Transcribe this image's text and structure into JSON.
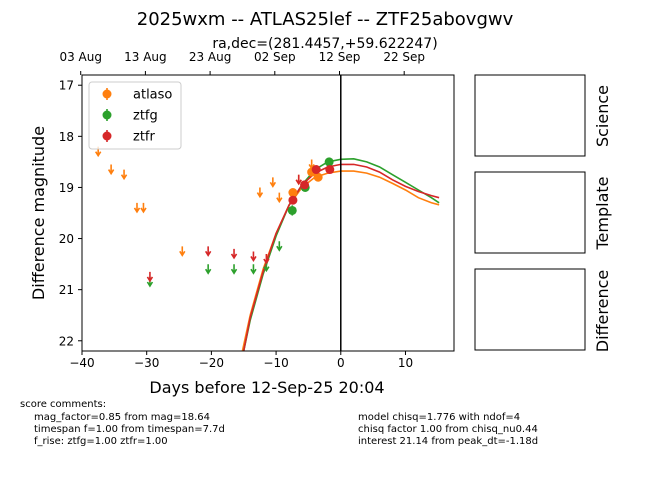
{
  "chart_data": {
    "type": "scatter",
    "title": "2025wxm -- ATLAS25lef -- ZTF25abovgwv",
    "subtitle": "ra,dec=(281.4457,+59.622247)",
    "xlabel": "Days before 12-Sep-25 20:04",
    "ylabel": "Difference magnitude",
    "xlim": [
      -40,
      17.5
    ],
    "ylim": [
      22.2,
      16.8
    ],
    "y_inverted": true,
    "x_ticks": [
      -40,
      -30,
      -20,
      -10,
      0,
      10
    ],
    "x_tick_labels": [
      "−40",
      "−30",
      "−20",
      "−10",
      "0",
      "10"
    ],
    "y_ticks": [
      17,
      18,
      19,
      20,
      21,
      22
    ],
    "y_tick_labels": [
      "17",
      "18",
      "19",
      "20",
      "21",
      "22"
    ],
    "top_axis_ticks": [
      {
        "x": -40.2,
        "label": "03 Aug"
      },
      {
        "x": -30.2,
        "label": "13 Aug"
      },
      {
        "x": -20.2,
        "label": "23 Aug"
      },
      {
        "x": -10.2,
        "label": "02 Sep"
      },
      {
        "x": -0.2,
        "label": "12 Sep"
      },
      {
        "x": 9.8,
        "label": "22 Sep"
      }
    ],
    "vline_x": 0,
    "legend_position": "upper-left",
    "series": [
      {
        "name": "atlaso",
        "color": "#ff7f0e",
        "detections": [
          {
            "x": -7.4,
            "y": 19.1,
            "err": 0.05
          },
          {
            "x": -4.5,
            "y": 18.7,
            "err": 0.05
          },
          {
            "x": -3.5,
            "y": 18.8,
            "err": 0.06
          }
        ],
        "upper_limits": [
          {
            "x": -37.5,
            "y": 18.3
          },
          {
            "x": -35.5,
            "y": 18.65
          },
          {
            "x": -33.5,
            "y": 18.75
          },
          {
            "x": -31.5,
            "y": 19.4
          },
          {
            "x": -30.5,
            "y": 19.4
          },
          {
            "x": -24.5,
            "y": 20.25
          },
          {
            "x": -12.5,
            "y": 19.1
          },
          {
            "x": -10.5,
            "y": 18.9
          },
          {
            "x": -9.5,
            "y": 19.2
          },
          {
            "x": -6.5,
            "y": 18.85
          },
          {
            "x": -4.5,
            "y": 18.55
          }
        ],
        "model": [
          {
            "x": -15.2,
            "y": 22.2
          },
          {
            "x": -14,
            "y": 21.5
          },
          {
            "x": -12,
            "y": 20.6
          },
          {
            "x": -10,
            "y": 19.9
          },
          {
            "x": -8,
            "y": 19.35
          },
          {
            "x": -6,
            "y": 19.0
          },
          {
            "x": -4,
            "y": 18.8
          },
          {
            "x": -2,
            "y": 18.72
          },
          {
            "x": 0,
            "y": 18.68
          },
          {
            "x": 2,
            "y": 18.68
          },
          {
            "x": 4,
            "y": 18.72
          },
          {
            "x": 6,
            "y": 18.8
          },
          {
            "x": 8,
            "y": 18.92
          },
          {
            "x": 10,
            "y": 19.05
          },
          {
            "x": 12,
            "y": 19.2
          },
          {
            "x": 14,
            "y": 19.3
          },
          {
            "x": 15.2,
            "y": 19.34
          }
        ]
      },
      {
        "name": "ztfg",
        "color": "#2ca02c",
        "detections": [
          {
            "x": -7.5,
            "y": 19.45,
            "err": 0.1
          },
          {
            "x": -5.5,
            "y": 19.0,
            "err": 0.05
          },
          {
            "x": -1.8,
            "y": 18.5,
            "err": 0.04
          }
        ],
        "upper_limits": [
          {
            "x": -29.5,
            "y": 20.85
          },
          {
            "x": -20.5,
            "y": 20.6
          },
          {
            "x": -16.5,
            "y": 20.6
          },
          {
            "x": -13.5,
            "y": 20.6
          },
          {
            "x": -11.5,
            "y": 20.55
          },
          {
            "x": -9.5,
            "y": 20.15
          }
        ],
        "model": [
          {
            "x": -15.0,
            "y": 22.2
          },
          {
            "x": -14,
            "y": 21.6
          },
          {
            "x": -12,
            "y": 20.7
          },
          {
            "x": -10,
            "y": 19.95
          },
          {
            "x": -8,
            "y": 19.35
          },
          {
            "x": -6,
            "y": 18.95
          },
          {
            "x": -4,
            "y": 18.65
          },
          {
            "x": -2,
            "y": 18.5
          },
          {
            "x": 0,
            "y": 18.45
          },
          {
            "x": 2,
            "y": 18.44
          },
          {
            "x": 4,
            "y": 18.5
          },
          {
            "x": 6,
            "y": 18.6
          },
          {
            "x": 8,
            "y": 18.75
          },
          {
            "x": 10,
            "y": 18.9
          },
          {
            "x": 12,
            "y": 19.05
          },
          {
            "x": 14,
            "y": 19.2
          },
          {
            "x": 15.2,
            "y": 19.3
          }
        ]
      },
      {
        "name": "ztfr",
        "color": "#d62728",
        "detections": [
          {
            "x": -7.4,
            "y": 19.25,
            "err": 0.05
          },
          {
            "x": -5.6,
            "y": 18.95,
            "err": 0.05
          },
          {
            "x": -3.8,
            "y": 18.65,
            "err": 0.04
          },
          {
            "x": -1.7,
            "y": 18.65,
            "err": 0.04
          }
        ],
        "upper_limits": [
          {
            "x": -29.5,
            "y": 20.75
          },
          {
            "x": -20.5,
            "y": 20.25
          },
          {
            "x": -16.5,
            "y": 20.3
          },
          {
            "x": -13.5,
            "y": 20.35
          },
          {
            "x": -11.5,
            "y": 20.4
          },
          {
            "x": -6.5,
            "y": 18.85
          }
        ],
        "model": [
          {
            "x": -15.0,
            "y": 22.2
          },
          {
            "x": -14,
            "y": 21.55
          },
          {
            "x": -12,
            "y": 20.65
          },
          {
            "x": -10,
            "y": 19.9
          },
          {
            "x": -8,
            "y": 19.35
          },
          {
            "x": -6,
            "y": 18.95
          },
          {
            "x": -4,
            "y": 18.72
          },
          {
            "x": -2,
            "y": 18.6
          },
          {
            "x": 0,
            "y": 18.55
          },
          {
            "x": 2,
            "y": 18.55
          },
          {
            "x": 4,
            "y": 18.6
          },
          {
            "x": 6,
            "y": 18.7
          },
          {
            "x": 8,
            "y": 18.85
          },
          {
            "x": 10,
            "y": 18.98
          },
          {
            "x": 12,
            "y": 19.08
          },
          {
            "x": 14,
            "y": 19.16
          },
          {
            "x": 15.2,
            "y": 19.2
          }
        ]
      }
    ]
  },
  "side_panels": [
    "Science",
    "Template",
    "Difference"
  ],
  "comments": {
    "header": "score comments:",
    "left": [
      "mag_factor=0.85 from mag=18.64",
      "timespan f=1.00 from timespan=7.7d",
      "f_rise: ztfg=1.00 ztfr=1.00"
    ],
    "right": [
      "model chisq=1.776 with ndof=4",
      "chisq factor 1.00 from chisq_nu0.44",
      "interest 21.14 from peak_dt=-1.18d"
    ]
  }
}
